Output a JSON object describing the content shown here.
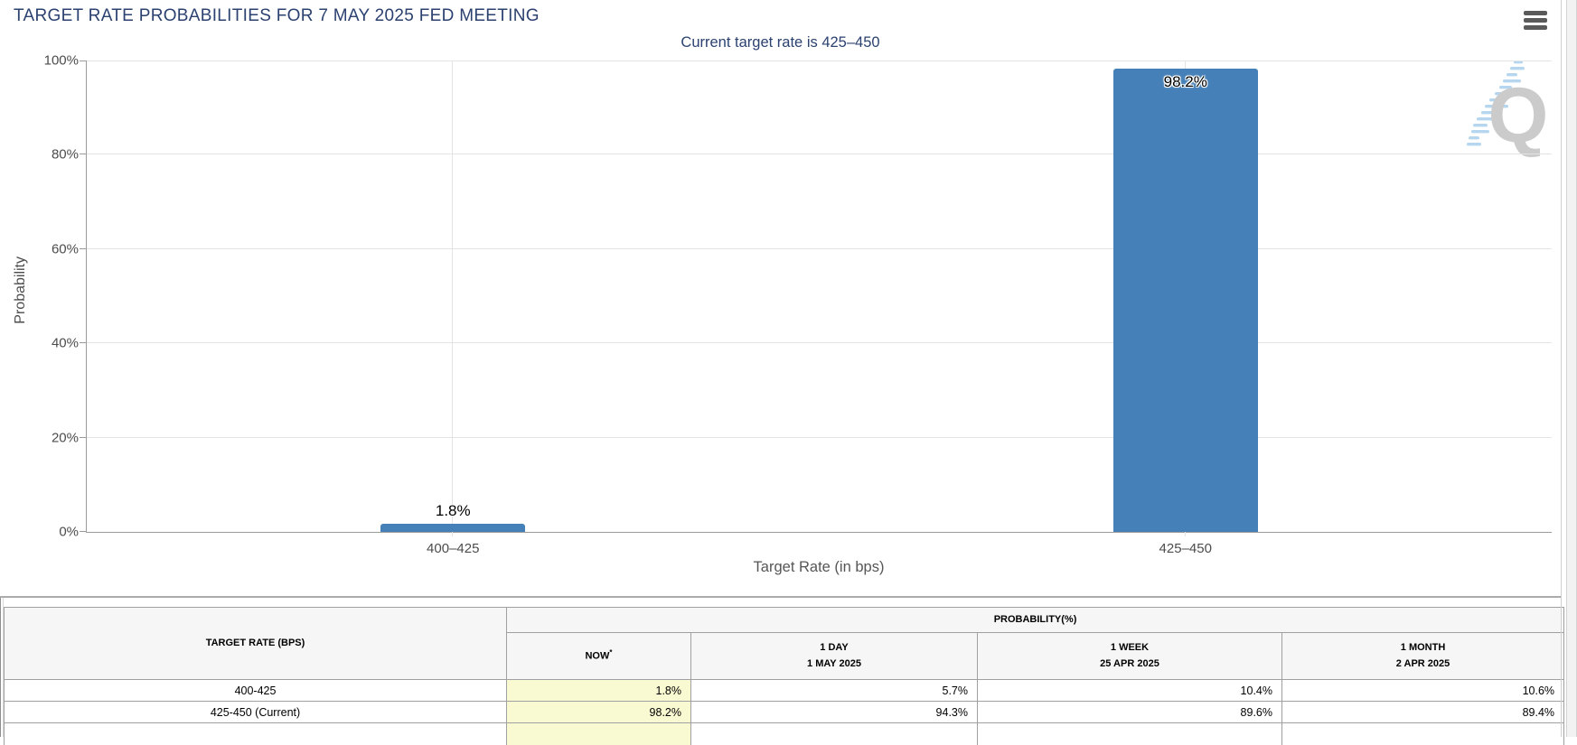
{
  "colors": {
    "navy": "#2b4170",
    "bar_blue": "#4580b8",
    "now_highlight": "#fafad2"
  },
  "header": {
    "title": "TARGET RATE PROBABILITIES FOR 7 MAY 2025 FED MEETING"
  },
  "chart_data": {
    "type": "bar",
    "title": "Current target rate is 425–450",
    "categories": [
      "400–425",
      "425–450"
    ],
    "values": [
      1.8,
      98.2
    ],
    "value_labels": [
      "1.8%",
      "98.2%"
    ],
    "xlabel": "Target Rate (in bps)",
    "ylabel": "Probability",
    "ylim": [
      0,
      100
    ],
    "ytick_labels": [
      "0%",
      "20%",
      "40%",
      "60%",
      "80%",
      "100%"
    ],
    "grid": "horizontal gridlines every 20%, vertical gridline at each category",
    "legend": "none",
    "bar_color": "#4580b8",
    "watermark_letter": "Q"
  },
  "table": {
    "col1_header": "TARGET RATE (BPS)",
    "group_header": "PROBABILITY(%)",
    "columns": [
      {
        "line1": "NOW",
        "sup": "*",
        "line2": ""
      },
      {
        "line1": "1 DAY",
        "line2": "1 MAY 2025"
      },
      {
        "line1": "1 WEEK",
        "line2": "25 APR 2025"
      },
      {
        "line1": "1 MONTH",
        "line2": "2 APR 2025"
      }
    ],
    "rows": [
      {
        "rate": "400-425",
        "values": [
          "1.8%",
          "5.7%",
          "10.4%",
          "10.6%"
        ]
      },
      {
        "rate": "425-450 (Current)",
        "values": [
          "98.2%",
          "94.3%",
          "89.6%",
          "89.4%"
        ]
      }
    ]
  }
}
